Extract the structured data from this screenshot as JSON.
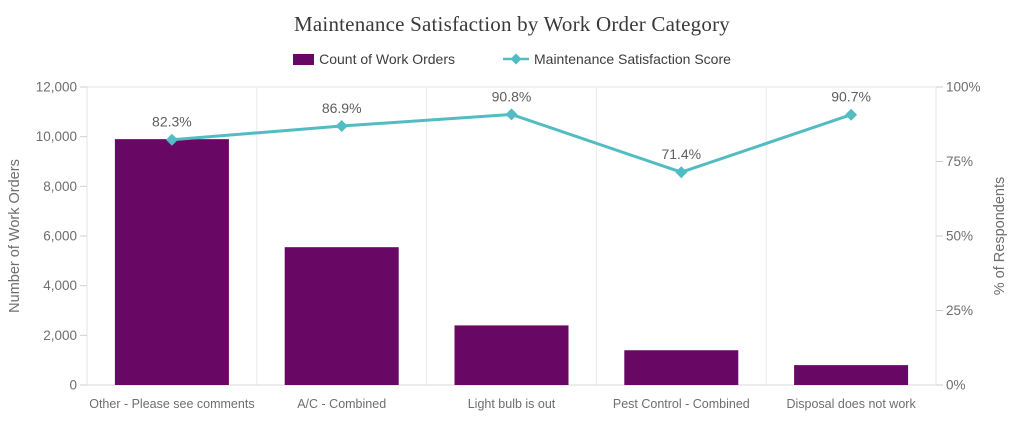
{
  "chart_data": {
    "type": "combo",
    "title": "Maintenance Satisfaction by Work Order Category",
    "categories": [
      "Other - Please see comments",
      "A/C - Combined",
      "Light bulb is out",
      "Pest Control - Combined",
      "Disposal does not work"
    ],
    "series": [
      {
        "name": "Count of Work Orders",
        "type": "bar",
        "axis": "left",
        "color": "#690764",
        "values": [
          9900,
          5550,
          2400,
          1400,
          800
        ]
      },
      {
        "name": "Maintenance Satisfaction Score",
        "type": "line",
        "axis": "right",
        "color": "#52BCC2",
        "values": [
          82.3,
          86.9,
          90.8,
          71.4,
          90.7
        ],
        "point_labels": [
          "82.3%",
          "86.9%",
          "90.8%",
          "71.4%",
          "90.7%"
        ]
      }
    ],
    "left_axis": {
      "title": "Number of Work Orders",
      "min": 0,
      "max": 12000,
      "tick_step": 2000,
      "tick_labels": [
        "0",
        "2,000",
        "4,000",
        "6,000",
        "8,000",
        "10,000",
        "12,000"
      ]
    },
    "right_axis": {
      "title": "% of Respondents",
      "min": 0,
      "max": 100,
      "tick_step": 25,
      "tick_labels": [
        "0%",
        "25%",
        "50%",
        "75%",
        "100%"
      ]
    },
    "legend_position": "top",
    "grid": {
      "horizontal_gridlines": false,
      "vertical_separators": true
    }
  },
  "colors": {
    "bar": "#690764",
    "line": "#52BCC2",
    "title_text": "#3A3A3A",
    "axis_text": "#6E6E6E",
    "data_label_text": "#5E5E5E",
    "legend_text": "#3D3D3D",
    "grid": "#E6E6E6",
    "axis_line": "#D8D8D8"
  }
}
